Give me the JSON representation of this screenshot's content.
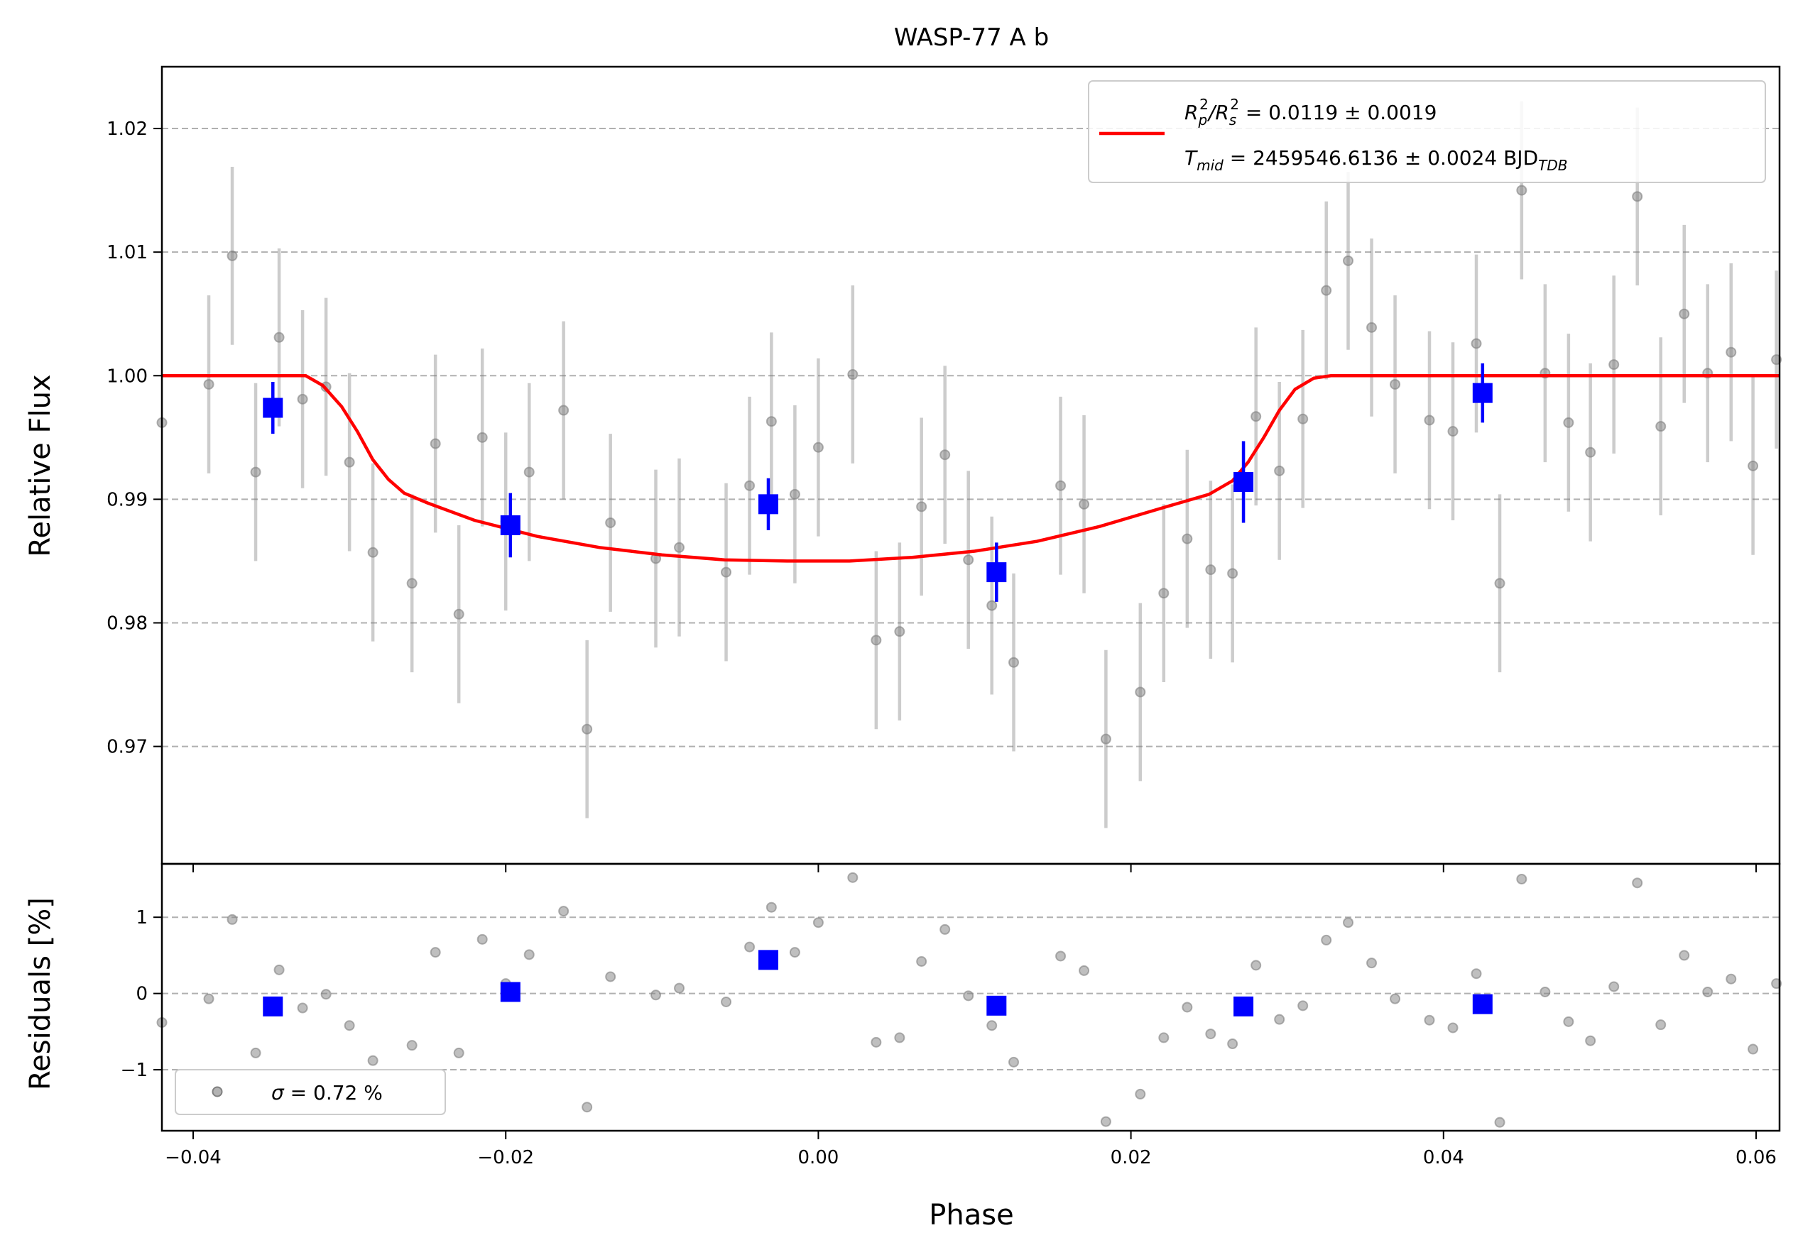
{
  "chart_data": [
    {
      "type": "scatter",
      "title": "WASP-77 A b",
      "xlabel": "Phase",
      "ylabel": "Relative Flux",
      "xlim": [
        -0.042,
        0.0615
      ],
      "ylim": [
        0.9605,
        1.025
      ],
      "xticks": [
        -0.04,
        -0.02,
        0.0,
        0.02,
        0.04,
        0.06
      ],
      "xtick_labels": [
        "−0.04",
        "−0.02",
        "0.00",
        "0.02",
        "0.04",
        "0.06"
      ],
      "yticks": [
        0.97,
        0.98,
        0.99,
        1.0,
        1.01,
        1.02
      ],
      "ytick_labels": [
        "0.97",
        "0.98",
        "0.99",
        "1.00",
        "1.01",
        "1.02"
      ],
      "grid": "horizontal-dashed",
      "legend": {
        "placement": "top-right",
        "line1_parts": [
          "R",
          "p",
          "2",
          "/R",
          "s",
          "2",
          " = 0.0119 ± 0.0019"
        ],
        "line2_parts": [
          "T",
          "mid",
          " = 2459546.6136 ± 0.0024 BJD",
          "TDB"
        ]
      },
      "model": {
        "color": "#ff0000",
        "depth": 0.015,
        "x": [
          -0.042,
          -0.0328,
          -0.0317,
          -0.0305,
          -0.0295,
          -0.0285,
          -0.0275,
          -0.0265,
          -0.025,
          -0.022,
          -0.018,
          -0.014,
          -0.01,
          -0.006,
          -0.002,
          0.0,
          0.002,
          0.006,
          0.01,
          0.014,
          0.018,
          0.022,
          0.025,
          0.0265,
          0.0275,
          0.0285,
          0.0295,
          0.0305,
          0.0317,
          0.0328,
          0.0615
        ],
        "y": [
          1.0,
          1.0,
          0.9992,
          0.9975,
          0.9955,
          0.9932,
          0.9916,
          0.9905,
          0.9897,
          0.9883,
          0.987,
          0.9861,
          0.9855,
          0.9851,
          0.985,
          0.985,
          0.985,
          0.9853,
          0.9858,
          0.9866,
          0.9878,
          0.9893,
          0.9904,
          0.9915,
          0.993,
          0.995,
          0.9972,
          0.9989,
          0.9998,
          1.0,
          1.0
        ]
      },
      "raw": {
        "color": "#808080",
        "points": [
          {
            "x": -0.042,
            "y": 0.9962,
            "err": 0.0
          },
          {
            "x": -0.039,
            "y": 0.9993,
            "err": 0.0072
          },
          {
            "x": -0.0375,
            "y": 1.0097,
            "err": 0.0072
          },
          {
            "x": -0.036,
            "y": 0.9922,
            "err": 0.0072
          },
          {
            "x": -0.0345,
            "y": 1.0031,
            "err": 0.0072
          },
          {
            "x": -0.033,
            "y": 0.9981,
            "err": 0.0072
          },
          {
            "x": -0.0315,
            "y": 0.9991,
            "err": 0.0072
          },
          {
            "x": -0.03,
            "y": 0.993,
            "err": 0.0072
          },
          {
            "x": -0.0285,
            "y": 0.9857,
            "err": 0.0072
          },
          {
            "x": -0.026,
            "y": 0.9832,
            "err": 0.0072
          },
          {
            "x": -0.0245,
            "y": 0.9945,
            "err": 0.0072
          },
          {
            "x": -0.023,
            "y": 0.9807,
            "err": 0.0072
          },
          {
            "x": -0.0215,
            "y": 0.995,
            "err": 0.0072
          },
          {
            "x": -0.02,
            "y": 0.9882,
            "err": 0.0072
          },
          {
            "x": -0.0185,
            "y": 0.9922,
            "err": 0.0072
          },
          {
            "x": -0.0163,
            "y": 0.9972,
            "err": 0.0072
          },
          {
            "x": -0.0148,
            "y": 0.9714,
            "err": 0.0072
          },
          {
            "x": -0.0133,
            "y": 0.9881,
            "err": 0.0072
          },
          {
            "x": -0.0104,
            "y": 0.9852,
            "err": 0.0072
          },
          {
            "x": -0.0089,
            "y": 0.9861,
            "err": 0.0072
          },
          {
            "x": -0.0059,
            "y": 0.9841,
            "err": 0.0072
          },
          {
            "x": -0.0044,
            "y": 0.9911,
            "err": 0.0072
          },
          {
            "x": -0.003,
            "y": 0.9963,
            "err": 0.0072
          },
          {
            "x": -0.0015,
            "y": 0.9904,
            "err": 0.0072
          },
          {
            "x": 0.0,
            "y": 0.9942,
            "err": 0.0072
          },
          {
            "x": 0.0022,
            "y": 1.0001,
            "err": 0.0072
          },
          {
            "x": 0.0037,
            "y": 0.9786,
            "err": 0.0072
          },
          {
            "x": 0.0052,
            "y": 0.9793,
            "err": 0.0072
          },
          {
            "x": 0.0066,
            "y": 0.9894,
            "err": 0.0072
          },
          {
            "x": 0.0081,
            "y": 0.9936,
            "err": 0.0072
          },
          {
            "x": 0.0096,
            "y": 0.9851,
            "err": 0.0072
          },
          {
            "x": 0.0111,
            "y": 0.9814,
            "err": 0.0072
          },
          {
            "x": 0.0125,
            "y": 0.9768,
            "err": 0.0072
          },
          {
            "x": 0.0155,
            "y": 0.9911,
            "err": 0.0072
          },
          {
            "x": 0.017,
            "y": 0.9896,
            "err": 0.0072
          },
          {
            "x": 0.0184,
            "y": 0.9706,
            "err": 0.0072
          },
          {
            "x": 0.0206,
            "y": 0.9744,
            "err": 0.0072
          },
          {
            "x": 0.0221,
            "y": 0.9824,
            "err": 0.0072
          },
          {
            "x": 0.0236,
            "y": 0.9868,
            "err": 0.0072
          },
          {
            "x": 0.0251,
            "y": 0.9843,
            "err": 0.0072
          },
          {
            "x": 0.0265,
            "y": 0.984,
            "err": 0.0072
          },
          {
            "x": 0.028,
            "y": 0.9967,
            "err": 0.0072
          },
          {
            "x": 0.0295,
            "y": 0.9923,
            "err": 0.0072
          },
          {
            "x": 0.031,
            "y": 0.9965,
            "err": 0.0072
          },
          {
            "x": 0.0325,
            "y": 1.0069,
            "err": 0.0072
          },
          {
            "x": 0.0339,
            "y": 1.0093,
            "err": 0.0072
          },
          {
            "x": 0.0354,
            "y": 1.0039,
            "err": 0.0072
          },
          {
            "x": 0.0369,
            "y": 0.9993,
            "err": 0.0072
          },
          {
            "x": 0.0391,
            "y": 0.9964,
            "err": 0.0072
          },
          {
            "x": 0.0406,
            "y": 0.9955,
            "err": 0.0072
          },
          {
            "x": 0.0421,
            "y": 1.0026,
            "err": 0.0072
          },
          {
            "x": 0.0436,
            "y": 0.9832,
            "err": 0.0072
          },
          {
            "x": 0.045,
            "y": 1.015,
            "err": 0.0072
          },
          {
            "x": 0.0465,
            "y": 1.0002,
            "err": 0.0072
          },
          {
            "x": 0.048,
            "y": 0.9962,
            "err": 0.0072
          },
          {
            "x": 0.0494,
            "y": 0.9938,
            "err": 0.0072
          },
          {
            "x": 0.0509,
            "y": 1.0009,
            "err": 0.0072
          },
          {
            "x": 0.0524,
            "y": 1.0145,
            "err": 0.0072
          },
          {
            "x": 0.0539,
            "y": 0.9959,
            "err": 0.0072
          },
          {
            "x": 0.0554,
            "y": 1.005,
            "err": 0.0072
          },
          {
            "x": 0.0569,
            "y": 1.0002,
            "err": 0.0072
          },
          {
            "x": 0.0584,
            "y": 1.0019,
            "err": 0.0072
          },
          {
            "x": 0.0598,
            "y": 0.9927,
            "err": 0.0072
          },
          {
            "x": 0.0613,
            "y": 1.0013,
            "err": 0.0072
          }
        ]
      },
      "binned": {
        "color": "#0000ff",
        "points": [
          {
            "x": -0.0349,
            "y": 0.9974,
            "err": 0.0021
          },
          {
            "x": -0.0197,
            "y": 0.9879,
            "err": 0.0026
          },
          {
            "x": -0.0032,
            "y": 0.9896,
            "err": 0.0021
          },
          {
            "x": 0.0114,
            "y": 0.9841,
            "err": 0.0024
          },
          {
            "x": 0.0272,
            "y": 0.9914,
            "err": 0.0033
          },
          {
            "x": 0.0425,
            "y": 0.9986,
            "err": 0.0024
          }
        ]
      }
    },
    {
      "type": "scatter",
      "xlabel": "Phase",
      "ylabel": "Residuals [%]",
      "xlim": [
        -0.042,
        0.0615
      ],
      "ylim": [
        -1.8,
        1.7
      ],
      "yticks": [
        -1,
        0,
        1
      ],
      "ytick_labels": [
        "−1",
        "0",
        "1"
      ],
      "grid": "horizontal-dashed",
      "legend": {
        "placement": "lower-left",
        "label_symbol": "σ",
        "label_text": " = 0.72 %"
      },
      "raw": {
        "color": "#808080",
        "points": [
          {
            "x": -0.042,
            "y": -0.38
          },
          {
            "x": -0.039,
            "y": -0.07
          },
          {
            "x": -0.0375,
            "y": 0.97
          },
          {
            "x": -0.036,
            "y": -0.78
          },
          {
            "x": -0.0345,
            "y": 0.31
          },
          {
            "x": -0.033,
            "y": -0.19
          },
          {
            "x": -0.0315,
            "y": -0.01
          },
          {
            "x": -0.03,
            "y": -0.42
          },
          {
            "x": -0.0285,
            "y": -0.88
          },
          {
            "x": -0.026,
            "y": -0.68
          },
          {
            "x": -0.0245,
            "y": 0.54
          },
          {
            "x": -0.023,
            "y": -0.78
          },
          {
            "x": -0.0215,
            "y": 0.71
          },
          {
            "x": -0.02,
            "y": 0.13
          },
          {
            "x": -0.0185,
            "y": 0.51
          },
          {
            "x": -0.0163,
            "y": 1.08
          },
          {
            "x": -0.0148,
            "y": -1.49
          },
          {
            "x": -0.0133,
            "y": 0.22
          },
          {
            "x": -0.0104,
            "y": -0.02
          },
          {
            "x": -0.0089,
            "y": 0.07
          },
          {
            "x": -0.0059,
            "y": -0.11
          },
          {
            "x": -0.0044,
            "y": 0.61
          },
          {
            "x": -0.003,
            "y": 1.13
          },
          {
            "x": -0.0015,
            "y": 0.54
          },
          {
            "x": 0.0,
            "y": 0.93
          },
          {
            "x": 0.0022,
            "y": 1.52
          },
          {
            "x": 0.0037,
            "y": -0.64
          },
          {
            "x": 0.0052,
            "y": -0.58
          },
          {
            "x": 0.0066,
            "y": 0.42
          },
          {
            "x": 0.0081,
            "y": 0.84
          },
          {
            "x": 0.0096,
            "y": -0.03
          },
          {
            "x": 0.0111,
            "y": -0.42
          },
          {
            "x": 0.0125,
            "y": -0.9
          },
          {
            "x": 0.0155,
            "y": 0.49
          },
          {
            "x": 0.017,
            "y": 0.3
          },
          {
            "x": 0.0184,
            "y": -1.68
          },
          {
            "x": 0.0206,
            "y": -1.32
          },
          {
            "x": 0.0221,
            "y": -0.58
          },
          {
            "x": 0.0236,
            "y": -0.18
          },
          {
            "x": 0.0251,
            "y": -0.53
          },
          {
            "x": 0.0265,
            "y": -0.66
          },
          {
            "x": 0.028,
            "y": 0.37
          },
          {
            "x": 0.0295,
            "y": -0.34
          },
          {
            "x": 0.031,
            "y": -0.16
          },
          {
            "x": 0.0325,
            "y": 0.7
          },
          {
            "x": 0.0339,
            "y": 0.93
          },
          {
            "x": 0.0354,
            "y": 0.4
          },
          {
            "x": 0.0369,
            "y": -0.07
          },
          {
            "x": 0.0391,
            "y": -0.35
          },
          {
            "x": 0.0406,
            "y": -0.45
          },
          {
            "x": 0.0421,
            "y": 0.26
          },
          {
            "x": 0.0436,
            "y": -1.69
          },
          {
            "x": 0.045,
            "y": 1.5
          },
          {
            "x": 0.0465,
            "y": 0.02
          },
          {
            "x": 0.048,
            "y": -0.37
          },
          {
            "x": 0.0494,
            "y": -0.62
          },
          {
            "x": 0.0509,
            "y": 0.09
          },
          {
            "x": 0.0524,
            "y": 1.45
          },
          {
            "x": 0.0539,
            "y": -0.41
          },
          {
            "x": 0.0554,
            "y": 0.5
          },
          {
            "x": 0.0569,
            "y": 0.02
          },
          {
            "x": 0.0584,
            "y": 0.19
          },
          {
            "x": 0.0598,
            "y": -0.73
          },
          {
            "x": 0.0613,
            "y": 0.13
          }
        ]
      },
      "binned": {
        "color": "#0000ff",
        "points": [
          {
            "x": -0.0349,
            "y": -0.17
          },
          {
            "x": -0.0197,
            "y": 0.02
          },
          {
            "x": -0.0032,
            "y": 0.44
          },
          {
            "x": 0.0114,
            "y": -0.16
          },
          {
            "x": 0.0272,
            "y": -0.17
          },
          {
            "x": 0.0425,
            "y": -0.14
          }
        ]
      }
    }
  ]
}
